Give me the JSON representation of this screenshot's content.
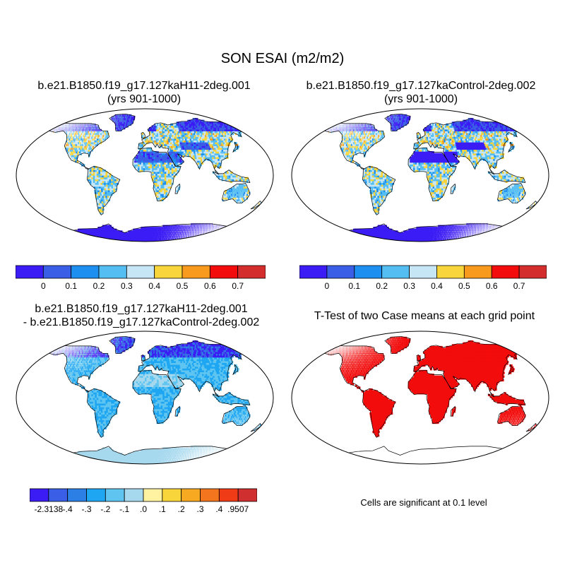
{
  "figure": {
    "title": "SON ESAI (m2/m2)"
  },
  "panels": [
    {
      "id": "case1",
      "title_line1": "b.e21.B1850.f19_g17.127kaH11-2deg.001",
      "title_line2": "(yrs 901-1000)",
      "field": "case1"
    },
    {
      "id": "case2",
      "title_line1": "b.e21.B1850.f19_g17.127kaControl-2deg.002",
      "title_line2": "(yrs 901-1000)",
      "field": "case2"
    },
    {
      "id": "diff",
      "title_line1": "b.e21.B1850.f19_g17.127kaH11-2deg.001",
      "title_line2": "- b.e21.B1850.f19_g17.127kaControl-2deg.002",
      "field": "diff"
    },
    {
      "id": "ttest",
      "title_line1": "T-Test of two Case means at each grid point",
      "title_line2": "",
      "field": "sig"
    }
  ],
  "colorbars": {
    "absolute": {
      "colors": [
        "#3b1cf5",
        "#3a5ee6",
        "#1d8ff0",
        "#54bdf2",
        "#c7e6f5",
        "#f8d53a",
        "#f79a1d",
        "#f20c0c",
        "#d32d2d"
      ],
      "labels": [
        "0",
        "0.1",
        "0.2",
        "0.3",
        "0.4",
        "0.5",
        "0.6",
        "0.7"
      ]
    },
    "difference": {
      "colors": [
        "#3b1cf5",
        "#3a5ee6",
        "#2c7fe4",
        "#1ea6f2",
        "#5fc5f0",
        "#a6d8ee",
        "#fff2a0",
        "#f8d53a",
        "#f6a921",
        "#f3761e",
        "#ef3b16",
        "#cf2f2f"
      ],
      "labels": [
        "-2.3138",
        "-.4",
        "-.3",
        "-.2",
        "-.1",
        ".0",
        ".1",
        ".2",
        ".3",
        ".4",
        ".9507"
      ]
    }
  },
  "significance_note": "Cells are significant at 0.1 level",
  "map_data": {
    "projection": "robinson",
    "significance_color": "#f20c0c",
    "land_outline_color": "#000000"
  }
}
